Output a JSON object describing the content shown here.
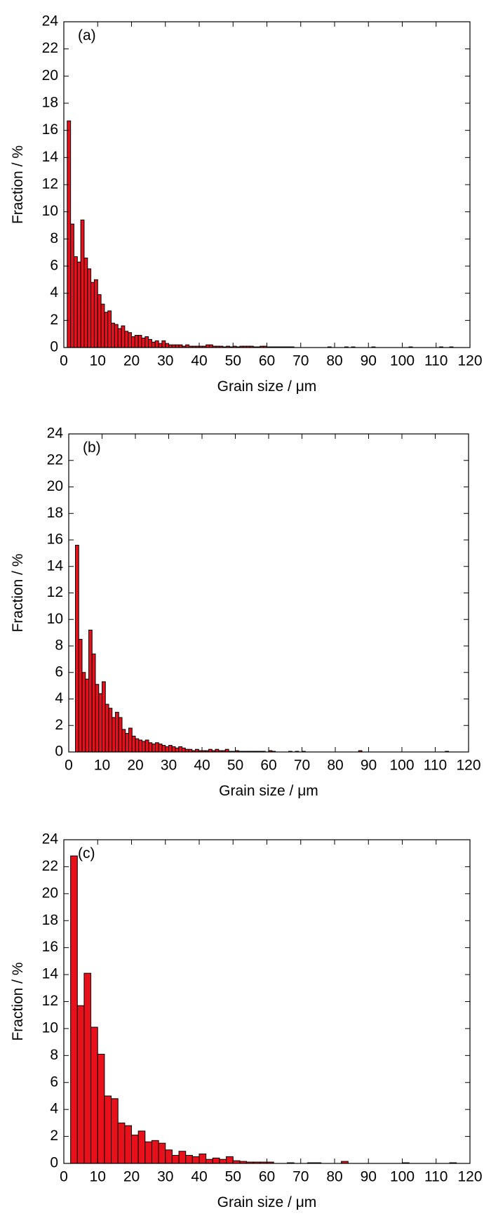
{
  "chart_data": [
    {
      "type": "histogram",
      "annotation": "(a)",
      "xlabel": "Grain size / μm",
      "ylabel": "Fraction / %",
      "color": "#e8101a",
      "bins": [
        1,
        2,
        3,
        4,
        5,
        6,
        7,
        8,
        9,
        10,
        11,
        12,
        13,
        14,
        15,
        16,
        17,
        18,
        19,
        20,
        21,
        22,
        23,
        24,
        25,
        26,
        27,
        28,
        29,
        30,
        31,
        32,
        33,
        34,
        35,
        36,
        37,
        38,
        39,
        40,
        41,
        42,
        43,
        44,
        45,
        46,
        47,
        48,
        49,
        50,
        51,
        52,
        53,
        54,
        55,
        56,
        57,
        58,
        59,
        60,
        61,
        62,
        63,
        64,
        65,
        66,
        67,
        68,
        69,
        70,
        71,
        72,
        73,
        74,
        75,
        76,
        77,
        78,
        79,
        80,
        81,
        82,
        83,
        84,
        85,
        86,
        87,
        88,
        89,
        90,
        91,
        92,
        93,
        94,
        95,
        96,
        97,
        98,
        99,
        100,
        101,
        102,
        103,
        104,
        105,
        106,
        107,
        108,
        109,
        110,
        111,
        112,
        113,
        114,
        115,
        116
      ],
      "counts": [
        16.7,
        9.1,
        6.7,
        6.3,
        9.4,
        6.6,
        5.8,
        4.8,
        5.0,
        3.9,
        3.2,
        2.6,
        2.7,
        1.8,
        1.7,
        1.4,
        1.6,
        1.2,
        1.1,
        0.8,
        0.9,
        0.9,
        0.7,
        0.8,
        0.6,
        0.4,
        0.5,
        0.3,
        0.5,
        0.3,
        0.2,
        0.2,
        0.2,
        0.2,
        0.1,
        0.2,
        0.1,
        0.1,
        0.1,
        0.1,
        0.1,
        0.2,
        0.2,
        0.1,
        0.1,
        0.1,
        0.05,
        0.1,
        0.05,
        0.1,
        0.05,
        0.1,
        0.1,
        0.1,
        0.1,
        0.05,
        0.05,
        0.1,
        0.1,
        0.05,
        0.05,
        0.05,
        0.05,
        0.05,
        0.05,
        0.05,
        0.05,
        0,
        0,
        0,
        0,
        0,
        0,
        0,
        0,
        0,
        0,
        0.05,
        0,
        0,
        0,
        0,
        0.05,
        0,
        0.05,
        0,
        0,
        0,
        0,
        0,
        0.05,
        0,
        0,
        0,
        0,
        0,
        0,
        0,
        0,
        0,
        0,
        0.05,
        0,
        0,
        0,
        0,
        0,
        0,
        0,
        0,
        0.05,
        0,
        0,
        0.05,
        0
      ],
      "xlim": [
        0,
        120
      ],
      "xticks": [
        0,
        10,
        20,
        30,
        40,
        50,
        60,
        70,
        80,
        90,
        100,
        110,
        120
      ],
      "ylim": [
        0,
        24
      ],
      "yticks": [
        0,
        2,
        4,
        6,
        8,
        10,
        12,
        14,
        16,
        18,
        20,
        22,
        24
      ]
    },
    {
      "type": "histogram",
      "annotation": "(b)",
      "xlabel": "Grain size / μm",
      "ylabel": "Fraction / %",
      "color": "#e8101a",
      "bins": [
        2,
        3,
        4,
        5,
        6,
        7,
        8,
        9,
        10,
        11,
        12,
        13,
        14,
        15,
        16,
        17,
        18,
        19,
        20,
        21,
        22,
        23,
        24,
        25,
        26,
        27,
        28,
        29,
        30,
        31,
        32,
        33,
        34,
        35,
        36,
        37,
        38,
        39,
        40,
        41,
        42,
        43,
        44,
        45,
        46,
        47,
        48,
        49,
        50,
        51,
        52,
        53,
        54,
        55,
        56,
        57,
        58,
        59,
        60,
        61,
        62,
        63,
        64,
        65,
        66,
        67,
        68,
        69,
        70,
        71,
        72,
        73,
        74,
        75,
        76,
        77,
        78,
        79,
        80,
        81,
        82,
        83,
        84,
        85,
        86,
        87,
        88,
        89,
        90,
        91,
        92,
        93,
        94,
        95,
        96,
        97,
        98,
        99,
        100,
        101,
        102,
        103,
        104,
        105,
        106,
        107,
        108,
        109,
        110,
        111,
        112,
        113,
        114,
        115
      ],
      "counts": [
        15.6,
        8.5,
        6.0,
        5.5,
        9.2,
        7.4,
        5.1,
        4.4,
        5.3,
        3.6,
        3.3,
        2.6,
        3.0,
        2.6,
        1.7,
        1.4,
        1.8,
        1.2,
        1.0,
        0.9,
        0.8,
        0.9,
        0.7,
        0.6,
        0.7,
        0.6,
        0.5,
        0.4,
        0.5,
        0.4,
        0.3,
        0.4,
        0.3,
        0.2,
        0.2,
        0.1,
        0.2,
        0.1,
        0.1,
        0.1,
        0.2,
        0.1,
        0.2,
        0.1,
        0.1,
        0.2,
        0.05,
        0.05,
        0.1,
        0.05,
        0.05,
        0.05,
        0.05,
        0.05,
        0.05,
        0.05,
        0.05,
        0,
        0.1,
        0.05,
        0,
        0,
        0,
        0,
        0.05,
        0,
        0.05,
        0,
        0.05,
        0,
        0,
        0,
        0,
        0,
        0,
        0,
        0,
        0,
        0,
        0,
        0,
        0,
        0,
        0,
        0,
        0.1,
        0,
        0,
        0,
        0,
        0,
        0,
        0,
        0,
        0,
        0,
        0,
        0,
        0,
        0,
        0,
        0,
        0,
        0,
        0,
        0,
        0,
        0,
        0,
        0,
        0,
        0.05,
        0
      ],
      "xlim": [
        0,
        120
      ],
      "xticks": [
        0,
        10,
        20,
        30,
        40,
        50,
        60,
        70,
        80,
        90,
        100,
        110,
        120
      ],
      "ylim": [
        0,
        24
      ],
      "yticks": [
        0,
        2,
        4,
        6,
        8,
        10,
        12,
        14,
        16,
        18,
        20,
        22,
        24
      ]
    },
    {
      "type": "histogram",
      "annotation": "(c)",
      "xlabel": "Grain size / μm",
      "ylabel": "Fraction / %",
      "color": "#e8101a",
      "bins": [
        2,
        4,
        6,
        8,
        10,
        12,
        14,
        16,
        18,
        20,
        22,
        24,
        26,
        28,
        30,
        32,
        34,
        36,
        38,
        40,
        42,
        44,
        46,
        48,
        50,
        52,
        54,
        56,
        58,
        60,
        62,
        64,
        66,
        68,
        70,
        72,
        74,
        76,
        78,
        80,
        82,
        84,
        86,
        88,
        90,
        92,
        94,
        96,
        98,
        100,
        102,
        104,
        106,
        108,
        110,
        112,
        114,
        116,
        118
      ],
      "counts": [
        22.8,
        11.7,
        14.1,
        10.1,
        8.1,
        5.0,
        4.8,
        3.0,
        2.8,
        2.1,
        2.4,
        1.6,
        1.7,
        1.5,
        1.0,
        0.6,
        0.9,
        0.6,
        0.5,
        0.7,
        0.3,
        0.4,
        0.3,
        0.5,
        0.2,
        0.15,
        0.1,
        0.1,
        0.1,
        0.1,
        0,
        0,
        0.05,
        0,
        0,
        0.05,
        0.05,
        0,
        0,
        0,
        0.15,
        0,
        0,
        0,
        0,
        0,
        0,
        0,
        0,
        0.05,
        0,
        0,
        0,
        0,
        0,
        0,
        0.05,
        0
      ],
      "xlim": [
        0,
        120
      ],
      "xticks": [
        0,
        10,
        20,
        30,
        40,
        50,
        60,
        70,
        80,
        90,
        100,
        110,
        120
      ],
      "ylim": [
        0,
        24
      ],
      "yticks": [
        0,
        2,
        4,
        6,
        8,
        10,
        12,
        14,
        16,
        18,
        20,
        22,
        24
      ]
    }
  ]
}
